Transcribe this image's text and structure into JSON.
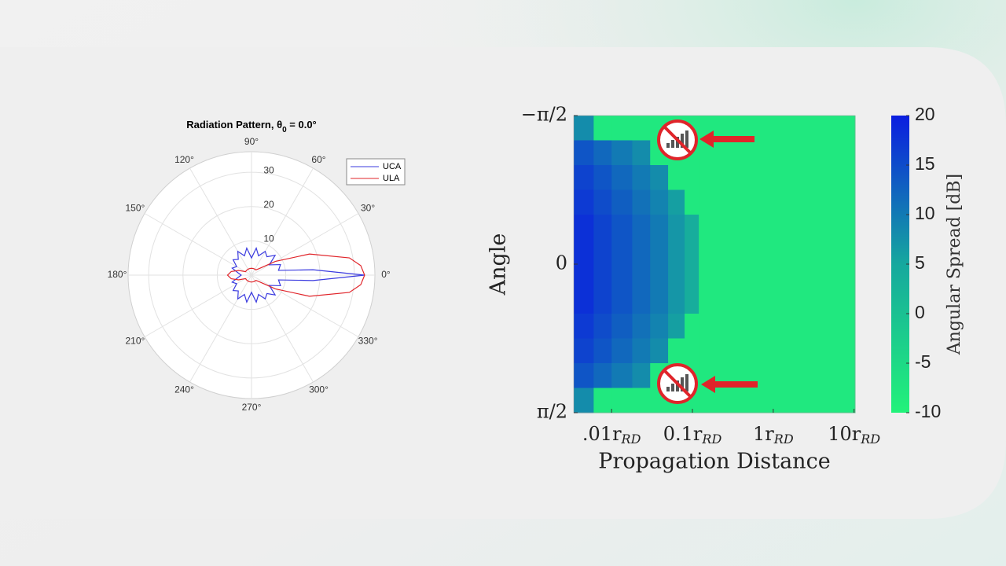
{
  "chart_data": [
    {
      "type": "polar",
      "title": {
        "text": "Radiation Pattern, θ",
        "subscript": "0",
        "rest": " = 0.0°"
      },
      "theta": [
        0,
        5,
        10,
        20,
        30,
        40,
        50,
        60,
        70,
        80,
        90,
        100,
        110,
        120,
        130,
        140,
        150,
        160,
        170,
        180,
        190,
        200,
        210,
        220,
        230,
        240,
        250,
        260,
        270,
        280,
        290,
        300,
        310,
        320,
        330,
        340,
        350,
        355
      ],
      "series": [
        {
          "name": "UCA",
          "color": "#3a3adf",
          "values": [
            33,
            18,
            8,
            9,
            6,
            9,
            7,
            8,
            6,
            8,
            5,
            8,
            6,
            8,
            6,
            7,
            5,
            6,
            4,
            3,
            4,
            6,
            5,
            7,
            6,
            8,
            6,
            8,
            5,
            8,
            6,
            8,
            7,
            9,
            6,
            9,
            8,
            18
          ]
        },
        {
          "name": "ULA",
          "color": "#e0242a",
          "values": [
            33,
            32,
            29,
            18,
            8,
            3,
            2,
            2,
            2,
            2,
            2,
            2,
            2,
            2,
            2,
            2,
            2,
            4,
            6,
            7,
            6,
            4,
            2,
            2,
            2,
            2,
            2,
            2,
            2,
            2,
            2,
            2,
            2,
            3,
            8,
            18,
            29,
            32
          ]
        }
      ],
      "rlim": [
        0,
        36
      ],
      "rticks": [
        10,
        20,
        30
      ],
      "angle_ticks": [
        {
          "value": 0,
          "label": "0°"
        },
        {
          "value": 30,
          "label": "30°"
        },
        {
          "value": 60,
          "label": "60°"
        },
        {
          "value": 90,
          "label": "90°"
        },
        {
          "value": 120,
          "label": "120°"
        },
        {
          "value": 150,
          "label": "150°"
        },
        {
          "value": 180,
          "label": "180°"
        },
        {
          "value": 210,
          "label": "210°"
        },
        {
          "value": 240,
          "label": "240°"
        },
        {
          "value": 270,
          "label": "270°"
        },
        {
          "value": 300,
          "label": "300°"
        },
        {
          "value": 330,
          "label": "330°"
        }
      ],
      "legend": "upper right"
    },
    {
      "type": "heatmap",
      "xlabel": "Propagation Distance",
      "ylabel": "Angle",
      "colorbar_label": "Angular Spread [dB]",
      "xscale": "log",
      "xlim": [
        0.0034,
        10.3
      ],
      "xticks": [
        {
          "value": 0.01,
          "label": ".01r"
        },
        {
          "value": 0.1,
          "label": "0.1r"
        },
        {
          "value": 1,
          "label": "1r"
        },
        {
          "value": 10,
          "label": "10r"
        }
      ],
      "xtick_subscript": "RD",
      "ylim": [
        -1.5708,
        1.5708
      ],
      "y_reversed": true,
      "yticks": [
        {
          "value": -1.5708,
          "label": "−π/2"
        },
        0,
        {
          "value": 1.5708,
          "label": "π/2"
        }
      ],
      "x_edges": [
        0.0034,
        0.006,
        0.01,
        0.018,
        0.03,
        0.05,
        0.08,
        0.12,
        10.3
      ],
      "y_edges": [
        -1.5708,
        -1.309,
        -1.0472,
        -0.7854,
        -0.5236,
        -0.2618,
        0,
        0.2618,
        0.5236,
        0.7854,
        1.0472,
        1.309,
        1.5708
      ],
      "z": [
        [
          8,
          -8,
          -8,
          -8,
          -8,
          -8,
          -8,
          -8
        ],
        [
          14,
          12,
          10,
          8,
          -8,
          -8,
          -8,
          -8
        ],
        [
          16,
          14,
          12,
          10,
          8,
          -8,
          -8,
          -8
        ],
        [
          17,
          15,
          13,
          11,
          9,
          6,
          -8,
          -8
        ],
        [
          18,
          16,
          14,
          12,
          10,
          7,
          4,
          -8
        ],
        [
          18,
          16,
          14,
          12,
          10,
          7,
          4,
          -8
        ],
        [
          18,
          16,
          14,
          12,
          10,
          7,
          4,
          -8
        ],
        [
          18,
          16,
          14,
          12,
          10,
          7,
          4,
          -8
        ],
        [
          17,
          15,
          13,
          11,
          9,
          6,
          -8,
          -8
        ],
        [
          16,
          14,
          12,
          10,
          8,
          -8,
          -8,
          -8
        ],
        [
          14,
          12,
          10,
          8,
          -8,
          -8,
          -8,
          -8
        ],
        [
          8,
          -8,
          -8,
          -8,
          -8,
          -8,
          -8,
          -8
        ]
      ],
      "clim": [
        -10,
        20
      ],
      "cticks": [
        20,
        15,
        10,
        5,
        0,
        -5,
        -10
      ],
      "colormap": [
        "#22f27a",
        "#16a89e",
        "#0b1ee0"
      ]
    }
  ]
}
